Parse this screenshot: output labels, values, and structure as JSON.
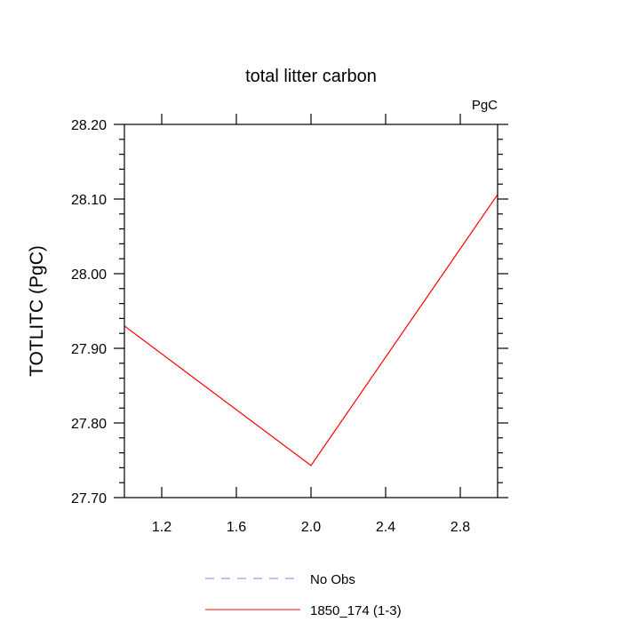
{
  "chart_data": {
    "type": "line",
    "title": "total litter carbon",
    "units_label": "PgC",
    "ylabel": "TOTLITC  (PgC)",
    "xlabel": "",
    "xlim": [
      1.0,
      3.0
    ],
    "ylim": [
      27.7,
      28.2
    ],
    "x_ticks": [
      "1.2",
      "1.6",
      "2.0",
      "2.4",
      "2.8"
    ],
    "y_ticks": [
      "27.70",
      "27.80",
      "27.90",
      "28.00",
      "28.10",
      "28.20"
    ],
    "series": [
      {
        "name": "1850_174 (1-3)",
        "color": "#ff0000",
        "style": "solid",
        "x": [
          1.0,
          2.0,
          3.0
        ],
        "y": [
          27.93,
          27.743,
          28.106
        ]
      }
    ],
    "legend": {
      "placement": "bottom-center",
      "entries": [
        {
          "label": "No Obs",
          "color": "#8080ff",
          "style": "dashed"
        },
        {
          "label": "1850_174 (1-3)",
          "color": "#ff0000",
          "style": "solid"
        }
      ]
    }
  }
}
